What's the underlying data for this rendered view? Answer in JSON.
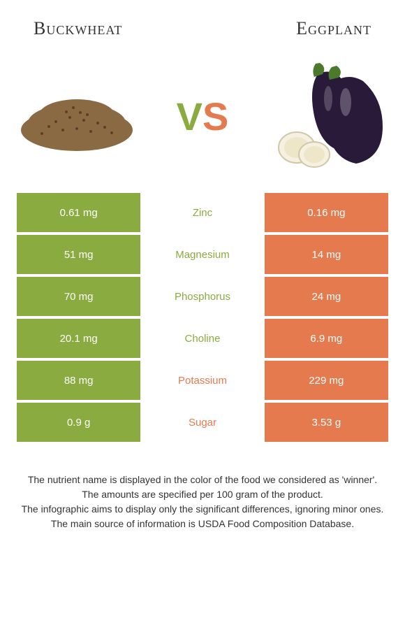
{
  "header": {
    "left": "Buckwheat",
    "right": "Eggplant"
  },
  "vs": {
    "v": "V",
    "s": "S"
  },
  "colors": {
    "left": "#8aab3f",
    "right": "#e67a4f",
    "background": "#ffffff",
    "text": "#333333"
  },
  "table": {
    "rows": [
      {
        "left": "0.61 mg",
        "label": "Zinc",
        "right": "0.16 mg",
        "winner": "left"
      },
      {
        "left": "51 mg",
        "label": "Magnesium",
        "right": "14 mg",
        "winner": "left"
      },
      {
        "left": "70 mg",
        "label": "Phosphorus",
        "right": "24 mg",
        "winner": "left"
      },
      {
        "left": "20.1 mg",
        "label": "Choline",
        "right": "6.9 mg",
        "winner": "left"
      },
      {
        "left": "88 mg",
        "label": "Potassium",
        "right": "229 mg",
        "winner": "right"
      },
      {
        "left": "0.9 g",
        "label": "Sugar",
        "right": "3.53 g",
        "winner": "right"
      }
    ]
  },
  "footer": {
    "line1": "The nutrient name is displayed in the color of the food we considered as 'winner'.",
    "line2": "The amounts are specified per 100 gram of the product.",
    "line3": "The infographic aims to display only the significant differences, ignoring minor ones.",
    "line4": "The main source of information is USDA Food Composition Database."
  }
}
